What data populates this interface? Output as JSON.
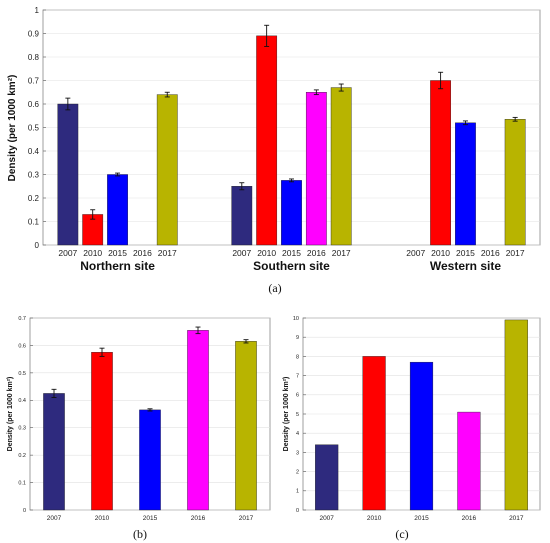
{
  "colors": {
    "2007": "#2e2a7e",
    "2010": "#ff0000",
    "2015": "#0000ff",
    "2016": "#ff00ff",
    "2017": "#b8b400",
    "errorbar": "#111111"
  },
  "chart_data": [
    {
      "id": "a",
      "type": "bar",
      "caption": "(a)",
      "ylabel": "Density (per 1000 km²)",
      "ylim": [
        0,
        1
      ],
      "yticks": [
        "0",
        "0.1",
        "0.2",
        "0.3",
        "0.4",
        "0.5",
        "0.6",
        "0.7",
        "0.8",
        "0.9",
        "1"
      ],
      "categories": [
        "2007",
        "2010",
        "2015",
        "2016",
        "2017"
      ],
      "groups": [
        {
          "label": "Northern site",
          "values": [
            0.6,
            0.13,
            0.3,
            null,
            0.64
          ],
          "errors": [
            0.025,
            0.02,
            0.006,
            null,
            0.01
          ]
        },
        {
          "label": "Southern site",
          "values": [
            0.25,
            0.89,
            0.275,
            0.65,
            0.67
          ],
          "errors": [
            0.015,
            0.045,
            0.006,
            0.01,
            0.015
          ]
        },
        {
          "label": "Western site",
          "values": [
            null,
            0.7,
            0.52,
            null,
            0.535
          ],
          "errors": [
            null,
            0.035,
            0.008,
            null,
            0.008
          ]
        }
      ]
    },
    {
      "id": "b",
      "type": "bar",
      "caption": "(b)",
      "ylabel": "Density (per 1000 km²)",
      "ylim": [
        0,
        0.7
      ],
      "yticks": [
        "0",
        "0.1",
        "0.2",
        "0.3",
        "0.4",
        "0.5",
        "0.6",
        "0.7"
      ],
      "categories": [
        "2007",
        "2010",
        "2015",
        "2016",
        "2017"
      ],
      "values": [
        0.425,
        0.575,
        0.365,
        0.655,
        0.615
      ],
      "errors": [
        0.015,
        0.015,
        0.004,
        0.012,
        0.006
      ]
    },
    {
      "id": "c",
      "type": "bar",
      "caption": "(c)",
      "ylabel": "Density (per 1000 km²)",
      "ylim": [
        0,
        10
      ],
      "yticks": [
        "0",
        "1",
        "2",
        "3",
        "4",
        "5",
        "6",
        "7",
        "8",
        "9",
        "10"
      ],
      "categories": [
        "2007",
        "2010",
        "2015",
        "2016",
        "2017"
      ],
      "values": [
        3.4,
        8.0,
        7.7,
        5.1,
        9.9
      ]
    }
  ]
}
